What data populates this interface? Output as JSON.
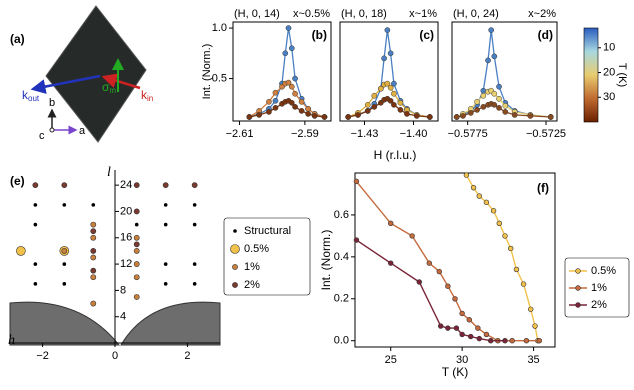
{
  "chart_data": [
    {
      "type": "diagram",
      "label": "(a)",
      "vectors": [
        {
          "symbol": "k",
          "subscript": "out",
          "color": "#2233bb"
        },
        {
          "symbol": "k",
          "subscript": "in",
          "color": "#cc2222"
        },
        {
          "symbol": "σ",
          "subscript": "m",
          "color": "#22aa22"
        }
      ],
      "axis_labels": [
        "b",
        "c",
        "a"
      ]
    },
    {
      "type": "peak",
      "label": "(b)",
      "title": "(H, 0, 14)",
      "subtitle": "x~0.5%",
      "ylabel": "Int. (Norm.)",
      "x": [
        -2.607,
        -2.604,
        -2.601,
        -2.599,
        -2.597,
        -2.596,
        -2.595,
        -2.594,
        -2.593,
        -2.591,
        -2.589,
        -2.587,
        -2.584
      ],
      "xlim": [
        -2.612,
        -2.582
      ],
      "xticks": [
        {
          "value": -2.61,
          "label": "−2.61"
        },
        {
          "value": -2.59,
          "label": "−2.59"
        }
      ],
      "ylim": [
        0.08,
        1.06
      ],
      "yticks": [
        0.5,
        {
          "value": 1,
          "label": "1.0"
        }
      ],
      "series": [
        {
          "color": "#4a7fc1",
          "values": [
            0.12,
            0.15,
            0.2,
            0.28,
            0.45,
            0.75,
            1.0,
            0.8,
            0.5,
            0.3,
            0.2,
            0.15,
            0.12
          ]
        },
        {
          "color": "#d08040",
          "values": [
            0.12,
            0.18,
            0.27,
            0.36,
            0.42,
            0.45,
            0.46,
            0.42,
            0.35,
            0.27,
            0.2,
            0.15,
            0.12
          ]
        },
        {
          "color": "#7a3510",
          "values": [
            0.12,
            0.14,
            0.17,
            0.21,
            0.25,
            0.27,
            0.28,
            0.26,
            0.22,
            0.18,
            0.15,
            0.13,
            0.12
          ]
        }
      ]
    },
    {
      "type": "peak",
      "label": "(c)",
      "title": "(H, 0, 18)",
      "subtitle": "x~1%",
      "xlabel": "H (r.l.u.)",
      "x": [
        -1.44,
        -1.434,
        -1.428,
        -1.424,
        -1.42,
        -1.418,
        -1.416,
        -1.414,
        -1.412,
        -1.408,
        -1.404,
        -1.398,
        -1.39
      ],
      "xlim": [
        -1.445,
        -1.385
      ],
      "xticks": [
        {
          "value": -1.43,
          "label": "−1.43"
        },
        {
          "value": -1.4,
          "label": "−1.40"
        }
      ],
      "ylim": [
        0.08,
        1.06
      ],
      "series": [
        {
          "color": "#4a7fc1",
          "values": [
            0.12,
            0.14,
            0.18,
            0.25,
            0.4,
            0.7,
            0.98,
            0.75,
            0.45,
            0.28,
            0.2,
            0.14,
            0.12
          ]
        },
        {
          "color": "#e0b040",
          "values": [
            0.12,
            0.16,
            0.24,
            0.33,
            0.4,
            0.44,
            0.45,
            0.41,
            0.35,
            0.26,
            0.19,
            0.14,
            0.12
          ]
        },
        {
          "color": "#7a3510",
          "values": [
            0.12,
            0.14,
            0.18,
            0.22,
            0.26,
            0.29,
            0.3,
            0.28,
            0.24,
            0.19,
            0.15,
            0.13,
            0.12
          ]
        }
      ]
    },
    {
      "type": "peak",
      "label": "(d)",
      "title": "(H, 0, 24)",
      "subtitle": "x~2%",
      "x": [
        -0.5782,
        -0.5778,
        -0.5773,
        -0.5769,
        -0.5765,
        -0.5762,
        -0.576,
        -0.5758,
        -0.5755,
        -0.5751,
        -0.5745,
        -0.5735,
        -0.5722
      ],
      "xlim": [
        -0.5785,
        -0.5718
      ],
      "xticks": [
        {
          "value": -0.5775,
          "label": "−0.5775"
        },
        {
          "value": -0.5725,
          "label": "−0.5725"
        }
      ],
      "ylim": [
        0.08,
        1.06
      ],
      "series": [
        {
          "color": "#4a7fc1",
          "values": [
            0.12,
            0.14,
            0.18,
            0.24,
            0.38,
            0.68,
            0.98,
            0.72,
            0.42,
            0.26,
            0.18,
            0.14,
            0.12
          ]
        },
        {
          "color": "#e8d070",
          "values": [
            0.12,
            0.15,
            0.2,
            0.27,
            0.33,
            0.37,
            0.38,
            0.35,
            0.3,
            0.23,
            0.17,
            0.14,
            0.12
          ]
        },
        {
          "color": "#8a4a20",
          "values": [
            0.12,
            0.13,
            0.16,
            0.19,
            0.22,
            0.24,
            0.25,
            0.24,
            0.21,
            0.17,
            0.14,
            0.13,
            0.12
          ]
        }
      ]
    },
    {
      "type": "colorbar",
      "label": "T (K)",
      "colors": [
        "#6a2000",
        "#c06a30",
        "#e8cc70",
        "#a8d8e0",
        "#2a5cc0"
      ],
      "ylim": [
        40,
        2
      ],
      "yticks": [
        10,
        20,
        30
      ]
    },
    {
      "type": "scatter",
      "label": "(e)",
      "xlabel": "h",
      "ylabel": "l",
      "xlim": [
        -2.9,
        2.9
      ],
      "ylim": [
        -0.3,
        26.3
      ],
      "xticks": [
        {
          "value": -2,
          "label": "−2"
        },
        0,
        2
      ],
      "yticks": [
        4,
        8,
        12,
        16,
        20,
        24
      ],
      "series": [
        {
          "name": "Structural",
          "color": "#000000",
          "x": [
            -2.2,
            -2.2,
            -2.2,
            -2.2,
            2.2,
            2.2,
            2.2,
            2.2,
            -1.4,
            -1.4,
            -1.4,
            1.4,
            1.4,
            1.4,
            1.4,
            -0.6,
            0.6
          ],
          "y": [
            21,
            18,
            12,
            9,
            21,
            18,
            12,
            9,
            21,
            12,
            9,
            21,
            18,
            12,
            9,
            21,
            18
          ]
        },
        {
          "name": "0.5%",
          "color": "#f2c14a",
          "x": [
            -2.6,
            -1.4
          ],
          "y": [
            14,
            14
          ]
        },
        {
          "name": "1%",
          "color": "#c8803c",
          "x": [
            -0.6,
            -0.6,
            -0.6,
            -0.6,
            -0.6,
            0.6,
            0.6,
            0.6,
            0.6,
            0.6,
            -1.4
          ],
          "y": [
            18,
            16,
            13,
            10,
            6,
            16,
            14,
            12,
            10,
            7,
            14
          ]
        },
        {
          "name": "2%",
          "color": "#7a3a30",
          "x": [
            -2.2,
            -1.4,
            0.6,
            1.4,
            2.2,
            -0.6,
            -0.6,
            -0.6,
            0.6,
            0.6
          ],
          "y": [
            24,
            24,
            24,
            24,
            24,
            17,
            14,
            11,
            20,
            15
          ]
        }
      ]
    },
    {
      "type": "line",
      "label": "(f)",
      "xlabel": "T (K)",
      "ylabel": "Int. (Norm.)",
      "xlim": [
        22.5,
        36.5
      ],
      "ylim": [
        -0.03,
        0.8
      ],
      "xticks": [
        25,
        30,
        35
      ],
      "yticks": [
        {
          "value": 0,
          "label": "0.0"
        },
        0.2,
        0.4,
        0.6
      ],
      "series": [
        {
          "name": "0.5%",
          "color": "#f2c14a",
          "x": [
            30.3,
            30.8,
            31.2,
            31.7,
            32.2,
            32.6,
            33,
            33.4,
            33.8,
            34.3,
            34.8,
            35.1,
            35.3
          ],
          "values": [
            0.79,
            0.73,
            0.69,
            0.66,
            0.62,
            0.56,
            0.5,
            0.44,
            0.34,
            0.27,
            0.15,
            0.07,
            0
          ]
        },
        {
          "name": "1%",
          "color": "#c46a3c",
          "x": [
            22.6,
            25,
            26.5,
            27.7,
            28.4,
            29,
            29.5,
            30,
            30.5,
            31.1,
            31.7,
            32.5,
            33.5,
            34.5,
            35.4
          ],
          "values": [
            0.76,
            0.56,
            0.5,
            0.37,
            0.33,
            0.26,
            0.2,
            0.13,
            0.1,
            0.06,
            0.03,
            0,
            0,
            0,
            0
          ]
        },
        {
          "name": "2%",
          "color": "#7a2438",
          "x": [
            22.6,
            25,
            27,
            28.5,
            29,
            29.6,
            30,
            30.6,
            31.2,
            32,
            33
          ],
          "values": [
            0.48,
            0.37,
            0.28,
            0.07,
            0.06,
            0.06,
            0.03,
            0.02,
            0.01,
            0,
            0
          ]
        }
      ]
    }
  ]
}
